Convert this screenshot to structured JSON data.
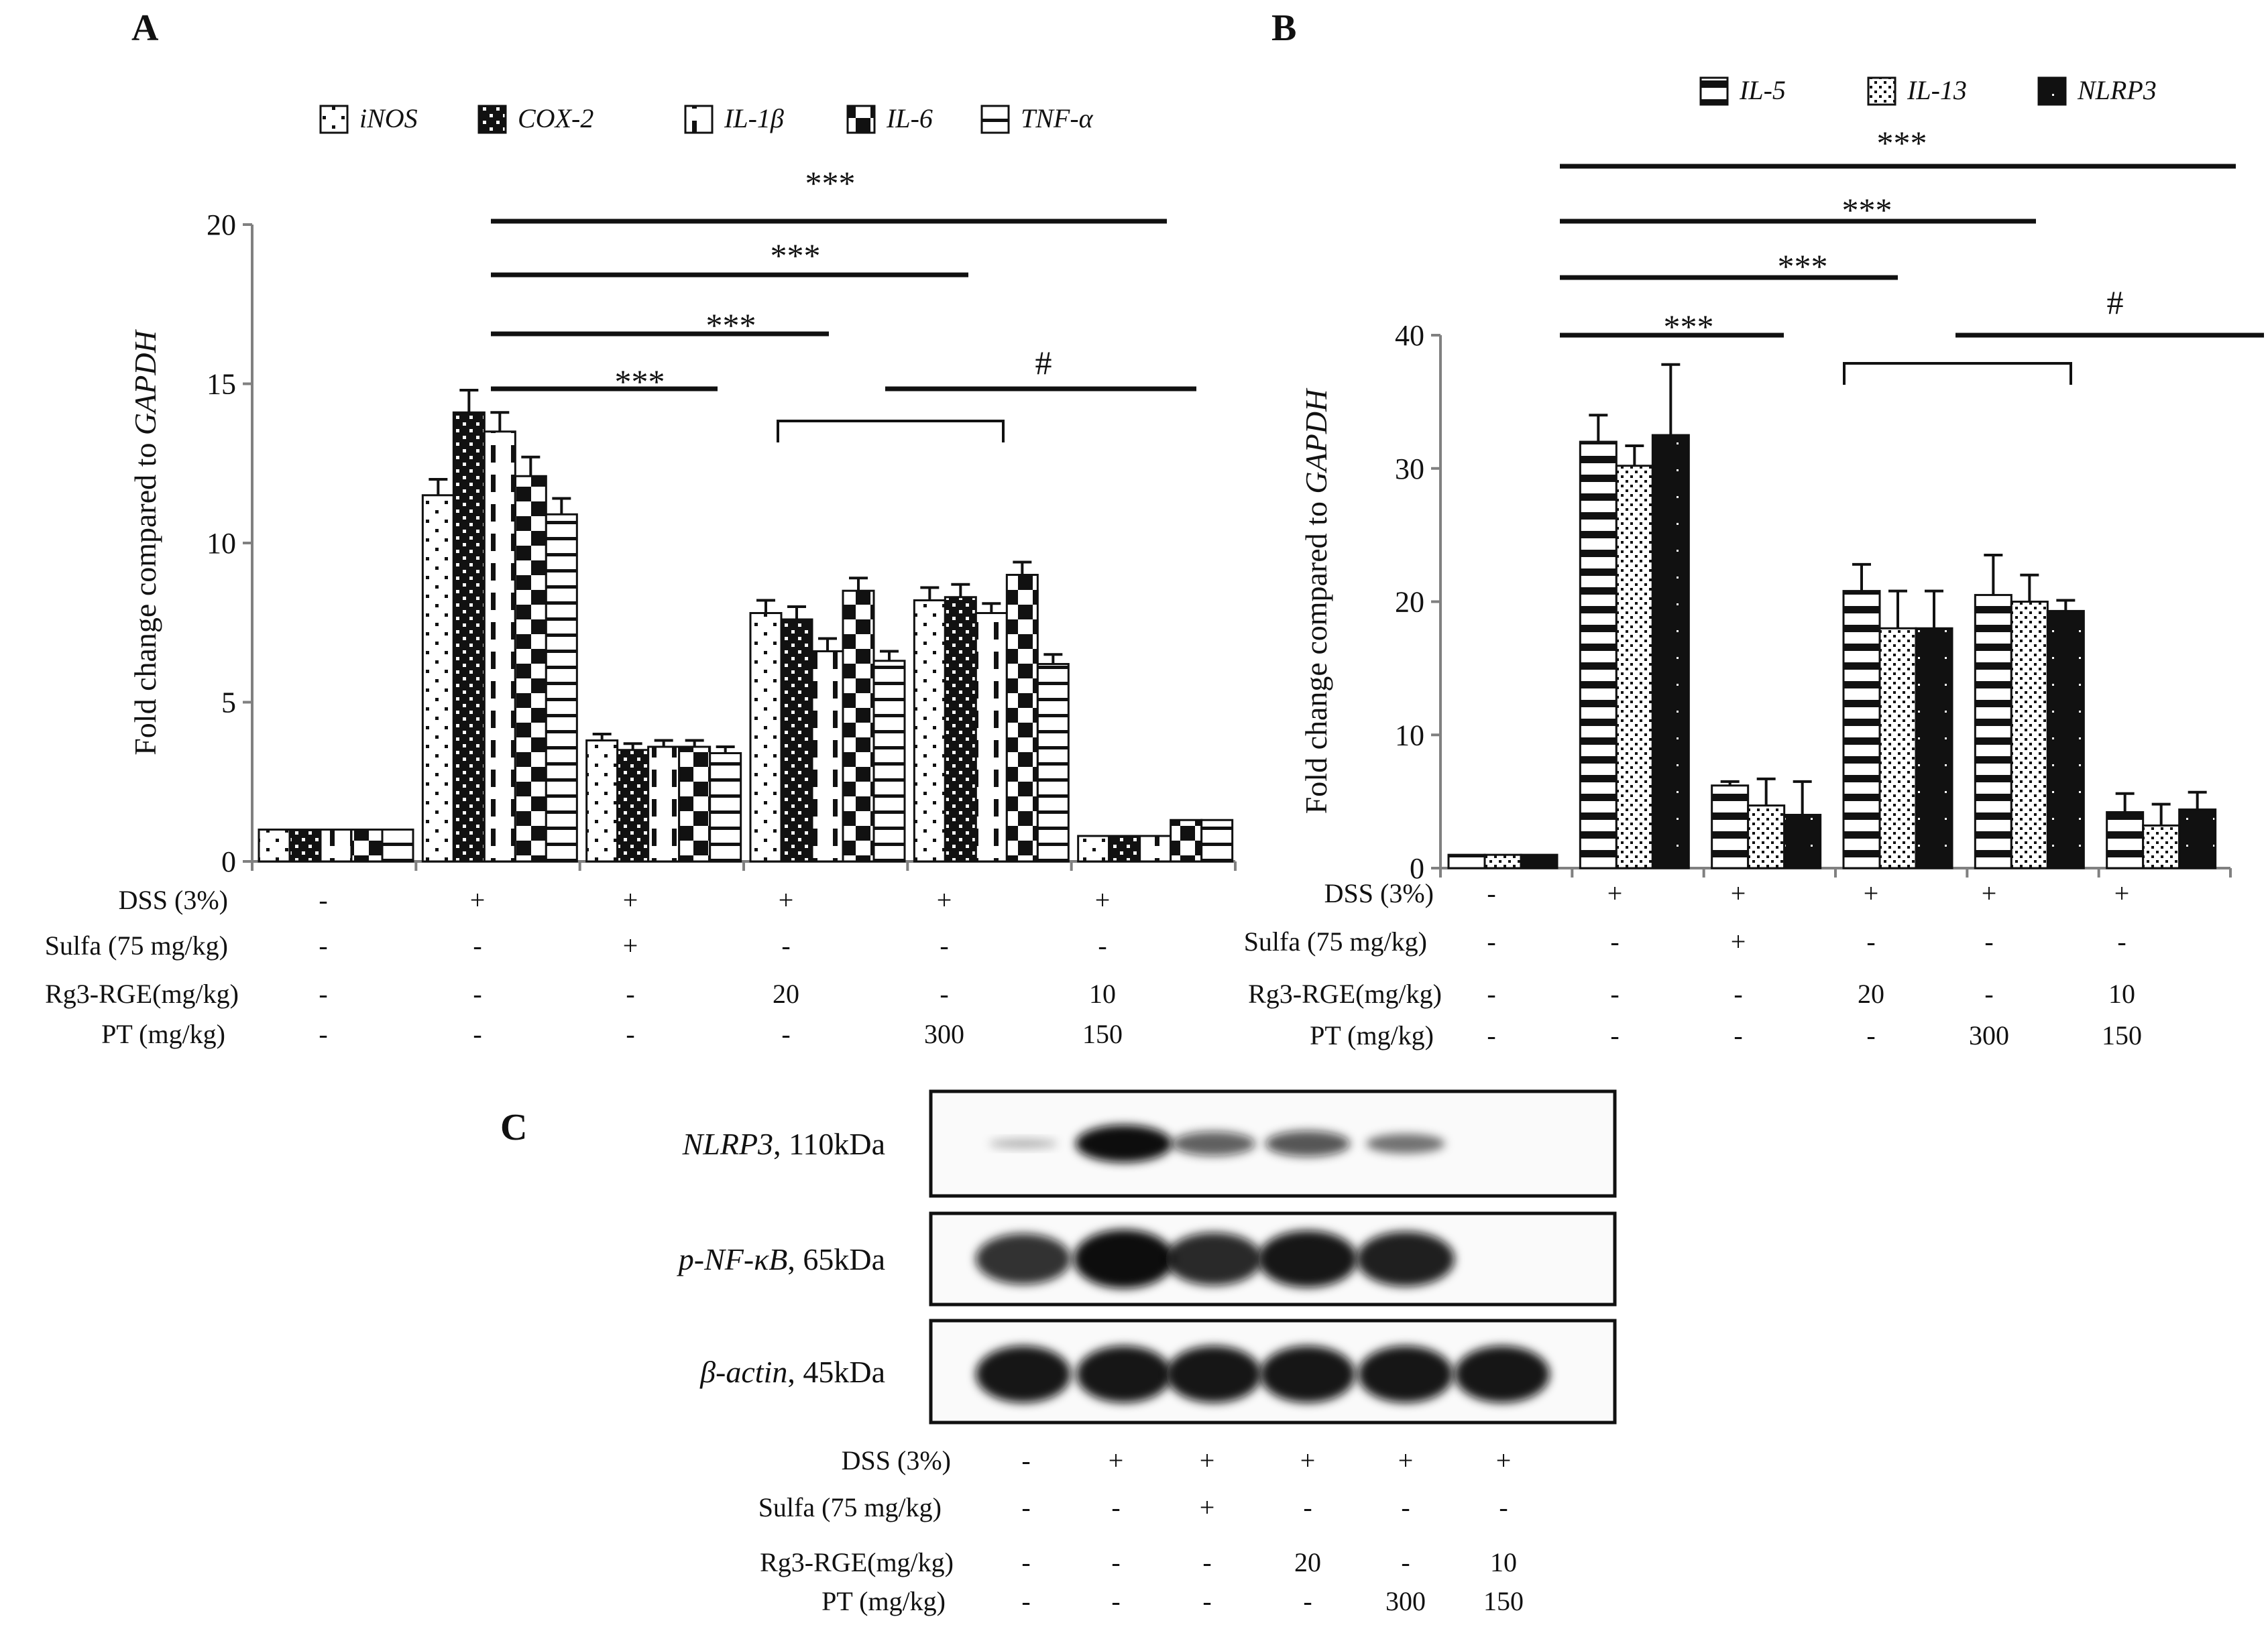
{
  "colors": {
    "ink": "#111111",
    "axis": "#808080",
    "blot_bg": "#fafafa",
    "band": "#0a0a0a"
  },
  "panel_letters": [
    "A",
    "B",
    "C"
  ],
  "treatment_labels": [
    "DSS (3%)",
    "Sulfa (75 mg/kg)",
    "Rg3-RGE(mg/kg)",
    "PT (mg/kg)"
  ],
  "treatment_values": [
    [
      "-",
      "+",
      "+",
      "+",
      "+",
      "+"
    ],
    [
      "-",
      "-",
      "+",
      "-",
      "-",
      "-"
    ],
    [
      "-",
      "-",
      "-",
      "20",
      "-",
      "10"
    ],
    [
      "-",
      "-",
      "-",
      "-",
      "300",
      "150"
    ]
  ],
  "chart_data": [
    {
      "panel": "A",
      "type": "bar",
      "ylabel_prefix": "Fold change compared to ",
      "ylabel_gene": "GAPDH",
      "xlabel": "",
      "ylim": [
        0,
        20
      ],
      "yticks": [
        "0",
        "5",
        "10",
        "15",
        "20"
      ],
      "groups": 6,
      "legend_position": "top",
      "series": [
        {
          "name": "iNOS",
          "pattern": "pA_dots",
          "values": [
            1.0,
            11.5,
            3.8,
            7.8,
            8.2,
            0.8
          ],
          "errors": [
            0,
            0.5,
            0.2,
            0.4,
            0.4,
            0
          ]
        },
        {
          "name": "COX-2",
          "pattern": "pA_check",
          "values": [
            1.0,
            14.1,
            3.5,
            7.6,
            8.3,
            0.8
          ],
          "errors": [
            0,
            0.7,
            0.2,
            0.4,
            0.4,
            0
          ]
        },
        {
          "name": "IL-1β",
          "pattern": "pA_dash",
          "values": [
            1.0,
            13.5,
            3.6,
            6.6,
            7.8,
            0.8
          ],
          "errors": [
            0,
            0.6,
            0.2,
            0.4,
            0.3,
            0
          ]
        },
        {
          "name": "IL-6",
          "pattern": "pA_bigcheck",
          "values": [
            1.0,
            12.1,
            3.6,
            8.5,
            9.0,
            1.3
          ],
          "errors": [
            0,
            0.6,
            0.2,
            0.4,
            0.4,
            0
          ]
        },
        {
          "name": "TNF-α",
          "pattern": "pA_hlines",
          "values": [
            1.0,
            10.9,
            3.4,
            6.3,
            6.2,
            1.3
          ],
          "errors": [
            0,
            0.5,
            0.2,
            0.3,
            0.3,
            0
          ]
        }
      ],
      "significance": [
        "***",
        "***",
        "***",
        "***",
        "#"
      ]
    },
    {
      "panel": "B",
      "type": "bar",
      "ylabel_prefix": "Fold change compared to ",
      "ylabel_gene": "GAPDH",
      "xlabel": "",
      "ylim": [
        0,
        40
      ],
      "yticks": [
        "0",
        "10",
        "20",
        "30",
        "40"
      ],
      "groups": 6,
      "legend_position": "top",
      "series": [
        {
          "name": "IL-5",
          "pattern": "pB_hlines",
          "values": [
            1.0,
            32.0,
            6.2,
            20.8,
            20.5,
            4.2
          ],
          "errors": [
            0,
            2.0,
            0.3,
            2.0,
            3.0,
            1.4
          ]
        },
        {
          "name": "IL-13",
          "pattern": "pB_dots",
          "values": [
            1.0,
            30.2,
            4.7,
            18.0,
            20.0,
            3.2
          ],
          "errors": [
            0,
            1.5,
            2.0,
            2.8,
            2.0,
            1.6
          ]
        },
        {
          "name": "NLRP3",
          "pattern": "pB_solid",
          "values": [
            1.0,
            32.5,
            4.0,
            18.0,
            19.3,
            4.4
          ],
          "errors": [
            0,
            5.3,
            2.5,
            2.8,
            0.8,
            1.3
          ]
        }
      ],
      "significance": [
        "***",
        "***",
        "***",
        "***",
        "#"
      ]
    }
  ],
  "blot": {
    "rows": [
      {
        "gene": "NLRP3",
        "size": ", 110kDa",
        "intensity": [
          0.05,
          1.0,
          0.55,
          0.6,
          0.4,
          0.0
        ]
      },
      {
        "gene": "p-NF-κB",
        "size": ", 65kDa",
        "intensity": [
          0.8,
          1.0,
          0.85,
          0.95,
          0.9,
          0.0
        ]
      },
      {
        "gene": "β-actin",
        "size": ", 45kDa",
        "intensity": [
          0.95,
          0.95,
          0.95,
          0.95,
          0.95,
          0.95
        ]
      }
    ]
  }
}
